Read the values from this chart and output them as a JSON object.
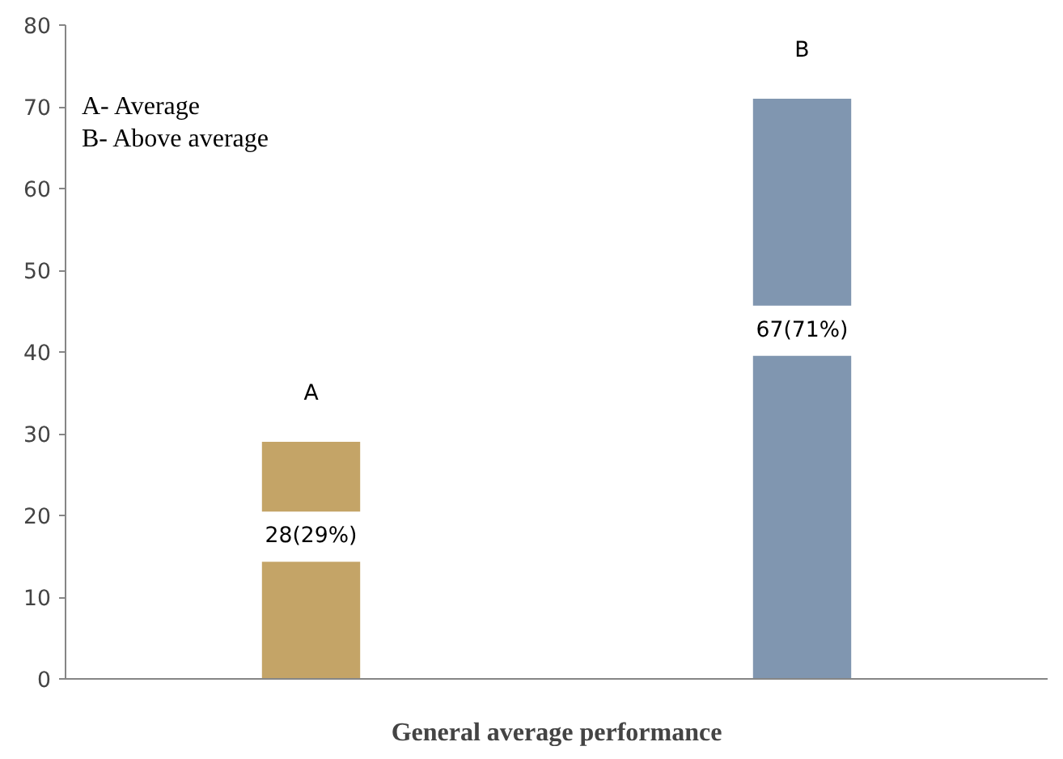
{
  "chart_data": {
    "type": "bar",
    "xlabel": "General average performance",
    "categories": [
      "A",
      "B"
    ],
    "values": [
      29,
      71
    ],
    "colors": [
      "#c4a467",
      "#8096b0"
    ],
    "value_labels": [
      "28(29%)",
      "67(71%)"
    ],
    "ylim": [
      0,
      80
    ],
    "yticks": [
      0,
      10,
      20,
      30,
      40,
      50,
      60,
      70,
      80
    ],
    "grid": false,
    "annotations": [
      "A-  Average",
      "B- Above average"
    ]
  }
}
